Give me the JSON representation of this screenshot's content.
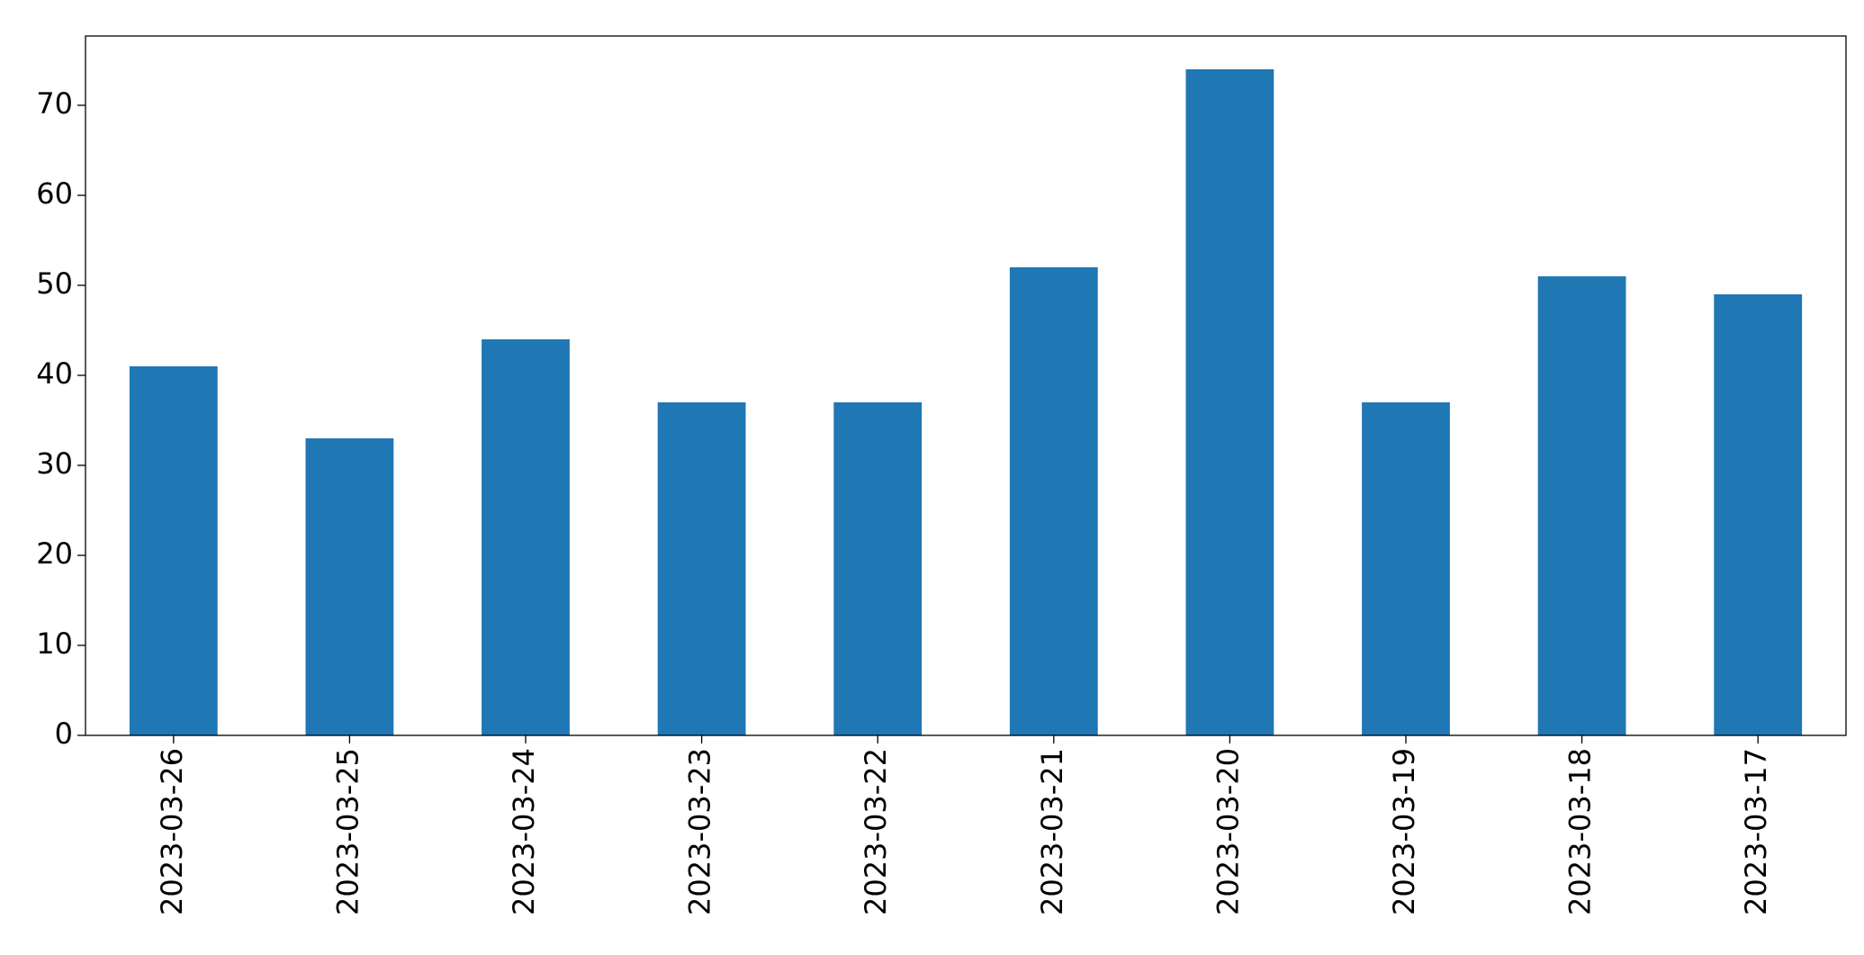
{
  "chart_data": {
    "type": "bar",
    "categories": [
      "2023-03-26",
      "2023-03-25",
      "2023-03-24",
      "2023-03-23",
      "2023-03-22",
      "2023-03-21",
      "2023-03-20",
      "2023-03-19",
      "2023-03-18",
      "2023-03-17"
    ],
    "values": [
      41,
      33,
      44,
      37,
      37,
      52,
      74,
      37,
      51,
      49
    ],
    "color": "#1f77b4",
    "ylim": [
      0,
      77.7
    ],
    "yticks": [
      0,
      10,
      20,
      30,
      40,
      50,
      60,
      70
    ],
    "grid": false
  }
}
